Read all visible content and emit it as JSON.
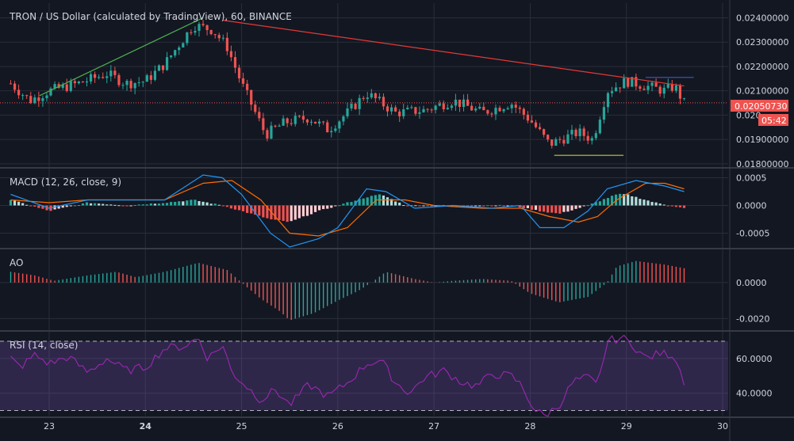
{
  "colors": {
    "background": "#131722",
    "grid": "#2a2e39",
    "text": "#d1d4dc",
    "up": "#26a69a",
    "down": "#ef5350",
    "trend_up": "#4caf50",
    "trend_down": "#e53935",
    "resistance": "#3f51b5",
    "support": "#c0ca33",
    "price_tag": "#ef5350",
    "macd_line": "#2196f3",
    "signal_line": "#ff6d00",
    "ao_up": "#26a69a",
    "ao_down": "#ef5350",
    "rsi_line": "#9c27b0",
    "rsi_band": "rgba(126,87,194,0.25)"
  },
  "chart_data": [
    {
      "type": "candlestick",
      "title": "TRON / US Dollar (calculated by TradingView), 60, BINANCE",
      "xaxis_ticks": [
        "23",
        "24",
        "25",
        "26",
        "27",
        "28",
        "29",
        "30"
      ],
      "ylim": [
        0.0179,
        0.0246
      ],
      "yaxis_ticks": [
        "0.02400000",
        "0.02300000",
        "0.02200000",
        "0.02100000",
        "0.020",
        "0.01900000",
        "0.01800000"
      ],
      "last_price": "0.02050730",
      "countdown": "05:42",
      "key_points": [
        {
          "x": 22.6,
          "y": 0.0213
        },
        {
          "x": 22.8,
          "y": 0.0206
        },
        {
          "x": 23.0,
          "y": 0.021
        },
        {
          "x": 23.3,
          "y": 0.0213
        },
        {
          "x": 23.6,
          "y": 0.0217
        },
        {
          "x": 23.8,
          "y": 0.0213
        },
        {
          "x": 24.0,
          "y": 0.0214
        },
        {
          "x": 24.2,
          "y": 0.0221
        },
        {
          "x": 24.5,
          "y": 0.0237
        },
        {
          "x": 24.7,
          "y": 0.0235
        },
        {
          "x": 24.85,
          "y": 0.0228
        },
        {
          "x": 25.0,
          "y": 0.0213
        },
        {
          "x": 25.25,
          "y": 0.0192
        },
        {
          "x": 25.45,
          "y": 0.0197
        },
        {
          "x": 25.7,
          "y": 0.0199
        },
        {
          "x": 25.9,
          "y": 0.0194
        },
        {
          "x": 26.1,
          "y": 0.0201
        },
        {
          "x": 26.3,
          "y": 0.0209
        },
        {
          "x": 26.6,
          "y": 0.0201
        },
        {
          "x": 26.9,
          "y": 0.0202
        },
        {
          "x": 27.2,
          "y": 0.0206
        },
        {
          "x": 27.5,
          "y": 0.0201
        },
        {
          "x": 27.8,
          "y": 0.0205
        },
        {
          "x": 28.0,
          "y": 0.0198
        },
        {
          "x": 28.2,
          "y": 0.0188
        },
        {
          "x": 28.5,
          "y": 0.0193
        },
        {
          "x": 28.65,
          "y": 0.019
        },
        {
          "x": 28.8,
          "y": 0.021
        },
        {
          "x": 29.0,
          "y": 0.0214
        },
        {
          "x": 29.2,
          "y": 0.0212
        },
        {
          "x": 29.4,
          "y": 0.021
        },
        {
          "x": 29.5,
          "y": 0.0212
        },
        {
          "x": 29.6,
          "y": 0.0205
        }
      ],
      "trendlines": [
        {
          "kind": "trend_up",
          "x1": 22.9,
          "y1": 0.0208,
          "x2": 24.6,
          "y2": 0.024
        },
        {
          "kind": "trend_down",
          "x1": 24.8,
          "y1": 0.0239,
          "x2": 29.6,
          "y2": 0.0212
        },
        {
          "kind": "resistance",
          "x1": 29.2,
          "y1": 0.02155,
          "x2": 29.7,
          "y2": 0.02155
        },
        {
          "kind": "support",
          "x1": 28.25,
          "y1": 0.01835,
          "x2": 28.97,
          "y2": 0.01835
        }
      ]
    },
    {
      "type": "line",
      "title": "MACD (12, 26, close, 9)",
      "ylim": [
        -0.00075,
        0.00065
      ],
      "yaxis_ticks": [
        "0.0005",
        "0.0000",
        "-0.0005"
      ],
      "series": [
        {
          "role": "macd",
          "points": [
            {
              "x": 22.6,
              "y": 0.0002
            },
            {
              "x": 23.0,
              "y": -5e-05
            },
            {
              "x": 23.4,
              "y": 0.0001
            },
            {
              "x": 23.8,
              "y": 0.0001
            },
            {
              "x": 24.2,
              "y": 0.0001
            },
            {
              "x": 24.6,
              "y": 0.00055
            },
            {
              "x": 24.8,
              "y": 0.0005
            },
            {
              "x": 25.0,
              "y": 0.0002
            },
            {
              "x": 25.3,
              "y": -0.0005
            },
            {
              "x": 25.5,
              "y": -0.00075
            },
            {
              "x": 25.8,
              "y": -0.0006
            },
            {
              "x": 26.0,
              "y": -0.0004
            },
            {
              "x": 26.3,
              "y": 0.0003
            },
            {
              "x": 26.5,
              "y": 0.00025
            },
            {
              "x": 26.8,
              "y": -5e-05
            },
            {
              "x": 27.2,
              "y": 0.0
            },
            {
              "x": 27.6,
              "y": -5e-05
            },
            {
              "x": 27.9,
              "y": 0.0
            },
            {
              "x": 28.1,
              "y": -0.0004
            },
            {
              "x": 28.35,
              "y": -0.0004
            },
            {
              "x": 28.6,
              "y": -0.0001
            },
            {
              "x": 28.8,
              "y": 0.0003
            },
            {
              "x": 29.1,
              "y": 0.00045
            },
            {
              "x": 29.4,
              "y": 0.00035
            },
            {
              "x": 29.6,
              "y": 0.00025
            }
          ]
        },
        {
          "role": "signal",
          "points": [
            {
              "x": 22.6,
              "y": 0.0001
            },
            {
              "x": 23.0,
              "y": 5e-05
            },
            {
              "x": 23.4,
              "y": 0.0001
            },
            {
              "x": 23.8,
              "y": 0.0001
            },
            {
              "x": 24.2,
              "y": 0.0001
            },
            {
              "x": 24.6,
              "y": 0.0004
            },
            {
              "x": 24.9,
              "y": 0.00045
            },
            {
              "x": 25.2,
              "y": 0.0001
            },
            {
              "x": 25.5,
              "y": -0.0005
            },
            {
              "x": 25.8,
              "y": -0.00055
            },
            {
              "x": 26.1,
              "y": -0.0004
            },
            {
              "x": 26.4,
              "y": 0.0001
            },
            {
              "x": 26.7,
              "y": 0.0001
            },
            {
              "x": 27.0,
              "y": 0.0
            },
            {
              "x": 27.5,
              "y": -5e-05
            },
            {
              "x": 27.9,
              "y": -5e-05
            },
            {
              "x": 28.2,
              "y": -0.0002
            },
            {
              "x": 28.5,
              "y": -0.0003
            },
            {
              "x": 28.7,
              "y": -0.0002
            },
            {
              "x": 28.9,
              "y": 0.0001
            },
            {
              "x": 29.2,
              "y": 0.0004
            },
            {
              "x": 29.4,
              "y": 0.0004
            },
            {
              "x": 29.6,
              "y": 0.0003
            }
          ]
        },
        {
          "role": "histogram",
          "points": [
            {
              "x": 22.6,
              "y": 0.0001
            },
            {
              "x": 23.0,
              "y": -0.0001
            },
            {
              "x": 23.4,
              "y": 5e-05
            },
            {
              "x": 23.8,
              "y": 0.0
            },
            {
              "x": 24.2,
              "y": 5e-05
            },
            {
              "x": 24.5,
              "y": 0.0001
            },
            {
              "x": 24.8,
              "y": 0.0
            },
            {
              "x": 25.0,
              "y": -0.0001
            },
            {
              "x": 25.3,
              "y": -0.00025
            },
            {
              "x": 25.5,
              "y": -0.0003
            },
            {
              "x": 25.8,
              "y": -0.0001
            },
            {
              "x": 26.0,
              "y": 0.0
            },
            {
              "x": 26.3,
              "y": 0.00015
            },
            {
              "x": 26.45,
              "y": 0.0002
            },
            {
              "x": 26.7,
              "y": 0.0
            },
            {
              "x": 27.2,
              "y": 0.0
            },
            {
              "x": 27.8,
              "y": 0.0
            },
            {
              "x": 28.1,
              "y": -0.0001
            },
            {
              "x": 28.3,
              "y": -0.00015
            },
            {
              "x": 28.6,
              "y": 0.0
            },
            {
              "x": 28.9,
              "y": 0.0002
            },
            {
              "x": 29.0,
              "y": 0.0002
            },
            {
              "x": 29.3,
              "y": 5e-05
            },
            {
              "x": 29.6,
              "y": -5e-05
            }
          ]
        }
      ]
    },
    {
      "type": "bar",
      "title": "AO",
      "ylim": [
        -0.0026,
        0.0018
      ],
      "yaxis_ticks": [
        "0.0000",
        "-0.0020"
      ],
      "series": [
        {
          "name": "AO",
          "points": [
            {
              "x": 22.6,
              "y": 0.0006
            },
            {
              "x": 22.85,
              "y": 0.0004
            },
            {
              "x": 23.05,
              "y": 0.0001
            },
            {
              "x": 23.4,
              "y": 0.0004
            },
            {
              "x": 23.7,
              "y": 0.0006
            },
            {
              "x": 23.9,
              "y": 0.0003
            },
            {
              "x": 24.2,
              "y": 0.0006
            },
            {
              "x": 24.55,
              "y": 0.0011
            },
            {
              "x": 24.85,
              "y": 0.0007
            },
            {
              "x": 25.0,
              "y": 0.0
            },
            {
              "x": 25.2,
              "y": -0.0009
            },
            {
              "x": 25.4,
              "y": -0.0016
            },
            {
              "x": 25.5,
              "y": -0.0021
            },
            {
              "x": 25.75,
              "y": -0.0017
            },
            {
              "x": 26.0,
              "y": -0.001
            },
            {
              "x": 26.2,
              "y": -0.0005
            },
            {
              "x": 26.35,
              "y": 0.0
            },
            {
              "x": 26.5,
              "y": 0.0006
            },
            {
              "x": 26.8,
              "y": 0.0002
            },
            {
              "x": 27.0,
              "y": 0.0
            },
            {
              "x": 27.2,
              "y": 0.0001
            },
            {
              "x": 27.5,
              "y": 0.0002
            },
            {
              "x": 27.8,
              "y": 0.0001
            },
            {
              "x": 28.0,
              "y": -0.0006
            },
            {
              "x": 28.3,
              "y": -0.0011
            },
            {
              "x": 28.6,
              "y": -0.0008
            },
            {
              "x": 28.8,
              "y": 0.0
            },
            {
              "x": 28.9,
              "y": 0.0009
            },
            {
              "x": 29.1,
              "y": 0.0012
            },
            {
              "x": 29.4,
              "y": 0.001
            },
            {
              "x": 29.6,
              "y": 0.0008
            }
          ]
        }
      ]
    },
    {
      "type": "line",
      "title": "RSI (14, close)",
      "ylim": [
        27,
        75
      ],
      "yaxis_ticks": [
        "60.0000",
        "40.0000"
      ],
      "bands": [
        30,
        70
      ],
      "series": [
        {
          "name": "RSI",
          "points": [
            {
              "x": 22.6,
              "y": 60
            },
            {
              "x": 22.7,
              "y": 55
            },
            {
              "x": 22.85,
              "y": 62
            },
            {
              "x": 23.0,
              "y": 57
            },
            {
              "x": 23.2,
              "y": 61
            },
            {
              "x": 23.4,
              "y": 52
            },
            {
              "x": 23.6,
              "y": 60
            },
            {
              "x": 23.8,
              "y": 53
            },
            {
              "x": 24.0,
              "y": 55
            },
            {
              "x": 24.2,
              "y": 66
            },
            {
              "x": 24.4,
              "y": 67
            },
            {
              "x": 24.55,
              "y": 72
            },
            {
              "x": 24.65,
              "y": 60
            },
            {
              "x": 24.8,
              "y": 68
            },
            {
              "x": 24.9,
              "y": 52
            },
            {
              "x": 25.05,
              "y": 44
            },
            {
              "x": 25.2,
              "y": 36
            },
            {
              "x": 25.35,
              "y": 42
            },
            {
              "x": 25.5,
              "y": 33
            },
            {
              "x": 25.7,
              "y": 45
            },
            {
              "x": 25.9,
              "y": 38
            },
            {
              "x": 26.1,
              "y": 46
            },
            {
              "x": 26.3,
              "y": 57
            },
            {
              "x": 26.45,
              "y": 59
            },
            {
              "x": 26.6,
              "y": 46
            },
            {
              "x": 26.75,
              "y": 40
            },
            {
              "x": 26.9,
              "y": 49
            },
            {
              "x": 27.1,
              "y": 53
            },
            {
              "x": 27.3,
              "y": 46
            },
            {
              "x": 27.45,
              "y": 44
            },
            {
              "x": 27.6,
              "y": 51
            },
            {
              "x": 27.8,
              "y": 50
            },
            {
              "x": 27.9,
              "y": 45
            },
            {
              "x": 28.05,
              "y": 30
            },
            {
              "x": 28.15,
              "y": 27
            },
            {
              "x": 28.3,
              "y": 33
            },
            {
              "x": 28.45,
              "y": 47
            },
            {
              "x": 28.6,
              "y": 49
            },
            {
              "x": 28.7,
              "y": 44
            },
            {
              "x": 28.8,
              "y": 70
            },
            {
              "x": 28.95,
              "y": 72
            },
            {
              "x": 29.05,
              "y": 69
            },
            {
              "x": 29.2,
              "y": 60
            },
            {
              "x": 29.35,
              "y": 63
            },
            {
              "x": 29.5,
              "y": 62
            },
            {
              "x": 29.6,
              "y": 47
            }
          ]
        }
      ]
    }
  ]
}
